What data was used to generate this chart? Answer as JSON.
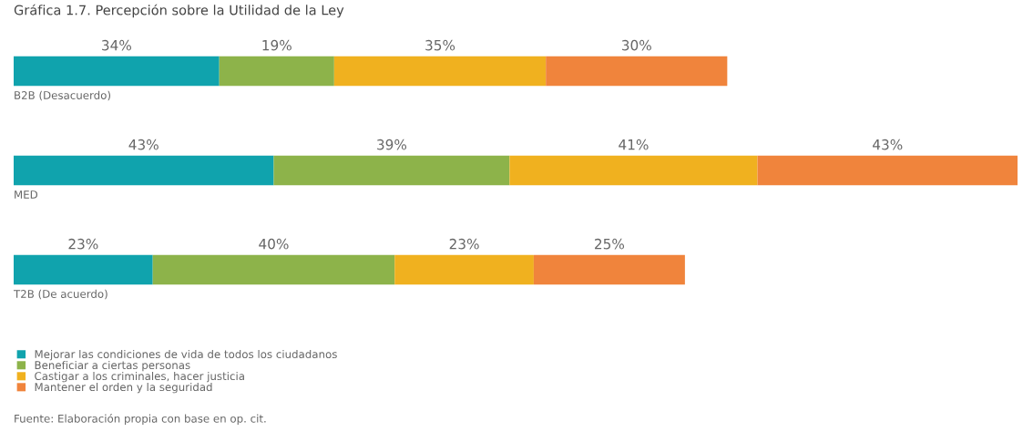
{
  "chart_data": {
    "type": "bar",
    "orientation": "horizontal",
    "stacked": true,
    "legend": "bottom left",
    "title": "Gráfica 1.7. Percepción sobre la Utilidad de la Ley",
    "categories": [
      "B2B (Desacuerdo)",
      "MED",
      "T2B (De acuerdo)"
    ],
    "series": [
      {
        "name": "Mejorar las condiciones de vida de todos los ciudadanos",
        "color": "#10a3ad",
        "values": [
          34,
          43,
          23
        ],
        "value_labels": [
          "34%",
          "43%",
          "23%"
        ]
      },
      {
        "name": "Beneficiar a ciertas personas",
        "color": "#8db34a",
        "values": [
          19,
          39,
          40
        ],
        "value_labels": [
          "19%",
          "39%",
          "40%"
        ]
      },
      {
        "name": "Castigar a los criminales, hacer justicia",
        "color": "#f0b11f",
        "values": [
          35,
          41,
          23
        ],
        "value_labels": [
          "35%",
          "41%",
          "23%"
        ]
      },
      {
        "name": "Mantener el orden y la seguridad",
        "color": "#f0843c",
        "values": [
          30,
          43,
          25
        ],
        "value_labels": [
          "30%",
          "43%",
          "25%"
        ]
      }
    ],
    "annotations": [
      "Fuente: Elaboración propia con base en op. cit."
    ]
  }
}
